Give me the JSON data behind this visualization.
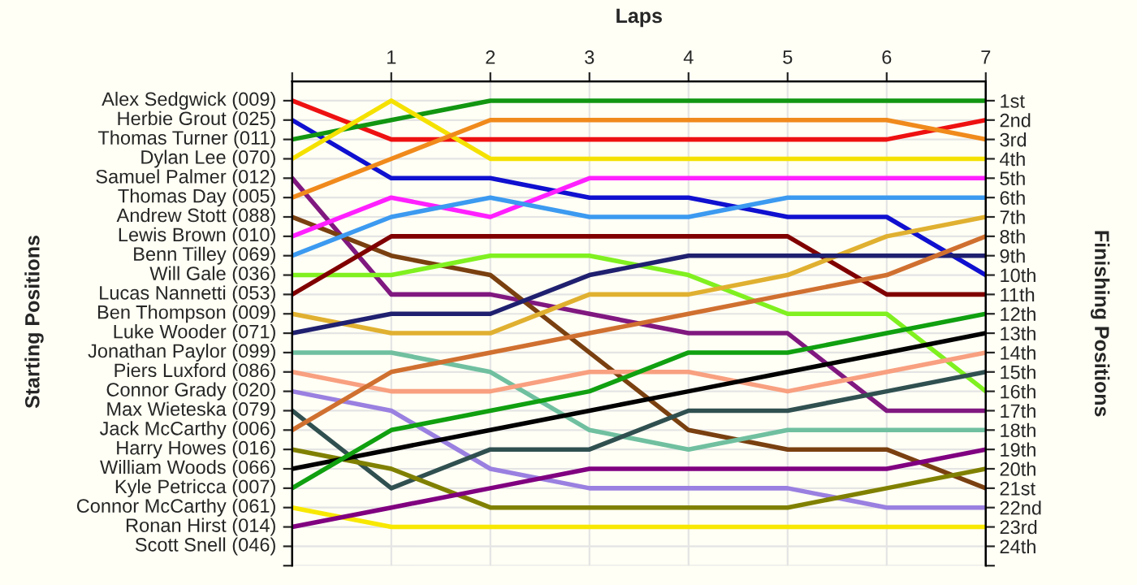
{
  "chart_data": {
    "type": "line",
    "xlabel": "Laps",
    "ylabel": "Finishing Positions",
    "x": [
      0,
      1,
      2,
      3,
      4,
      5,
      6,
      7
    ],
    "xlim": [
      0,
      7
    ],
    "xticks": [
      {
        "value": 0,
        "label": null
      },
      1,
      2,
      3,
      4,
      5,
      6,
      7
    ],
    "ylim": [
      25,
      0
    ],
    "yticks": [
      {
        "value": 1,
        "label": "1st"
      },
      {
        "value": 2,
        "label": "2nd"
      },
      {
        "value": 3,
        "label": "3rd"
      },
      {
        "value": 4,
        "label": "4th"
      },
      {
        "value": 5,
        "label": "5th"
      },
      {
        "value": 6,
        "label": "6th"
      },
      {
        "value": 7,
        "label": "7th"
      },
      {
        "value": 8,
        "label": "8th"
      },
      {
        "value": 9,
        "label": "9th"
      },
      {
        "value": 10,
        "label": "10th"
      },
      {
        "value": 11,
        "label": "11th"
      },
      {
        "value": 12,
        "label": "12th"
      },
      {
        "value": 13,
        "label": "13th"
      },
      {
        "value": 14,
        "label": "14th"
      },
      {
        "value": 15,
        "label": "15th"
      },
      {
        "value": 16,
        "label": "16th"
      },
      {
        "value": 17,
        "label": "17th"
      },
      {
        "value": 18,
        "label": "18th"
      },
      {
        "value": 19,
        "label": "19th"
      },
      {
        "value": 20,
        "label": "20th"
      },
      {
        "value": 21,
        "label": "21st"
      },
      {
        "value": 22,
        "label": "22nd"
      },
      {
        "value": 23,
        "label": "23rd"
      },
      {
        "value": 24,
        "label": "24th"
      },
      {
        "value": 25,
        "label": null
      }
    ],
    "annotations": [
      "Starting Positions",
      "Alex Sedgwick (009)",
      "Herbie Grout (025)",
      "Thomas Turner (011)",
      "Dylan Lee (070)",
      "Samuel Palmer (012)",
      "Thomas Day (005)",
      "Andrew Stott (088)",
      "Lewis Brown (010)",
      "Benn Tilley (069)",
      "Will Gale (036)",
      "Lucas Nannetti (053)",
      "Ben Thompson (009)",
      "Luke Wooder (071)",
      "Jonathan Paylor (099)",
      "Piers Luxford (086)",
      "Connor Grady (020)",
      "Max Wieteska (079)",
      "Jack McCarthy (006)",
      "Harry Howes (016)",
      "William Woods (066)",
      "Kyle Petricca (007)",
      "Connor McCarthy (061)",
      "Ronan Hirst (014)",
      "Scott Snell (046)"
    ],
    "grid": true,
    "legend": false,
    "marker": "none",
    "line_style": "solid",
    "series": [
      {
        "color": "#ee1111",
        "values": [
          1,
          3,
          3,
          3,
          3,
          3,
          3,
          2
        ]
      },
      {
        "color": "#1010d0",
        "values": [
          2,
          5,
          5,
          6,
          6,
          7,
          7,
          10
        ]
      },
      {
        "color": "#129612",
        "values": [
          3,
          2,
          1,
          1,
          1,
          1,
          1,
          1
        ]
      },
      {
        "color": "#f5e100",
        "values": [
          4,
          1,
          4,
          4,
          4,
          4,
          4,
          4
        ]
      },
      {
        "color": "#801880",
        "values": [
          5,
          11,
          11,
          12,
          13,
          13,
          17,
          17
        ]
      },
      {
        "color": "#f08a1c",
        "values": [
          6,
          4,
          2,
          2,
          2,
          2,
          2,
          3
        ]
      },
      {
        "color": "#7a4010",
        "values": [
          7,
          9,
          10,
          14,
          18,
          19,
          19,
          21
        ]
      },
      {
        "color": "#ff20ff",
        "values": [
          8,
          6,
          7,
          5,
          5,
          5,
          5,
          5
        ]
      },
      {
        "color": "#3c9af0",
        "values": [
          9,
          7,
          6,
          7,
          7,
          6,
          6,
          6
        ]
      },
      {
        "color": "#80f020",
        "values": [
          10,
          10,
          9,
          9,
          10,
          12,
          12,
          16
        ]
      },
      {
        "color": "#800000",
        "values": [
          11,
          8,
          8,
          8,
          8,
          8,
          11,
          11
        ]
      },
      {
        "color": "#e0b030",
        "values": [
          12,
          13,
          13,
          11,
          11,
          10,
          8,
          7
        ]
      },
      {
        "color": "#202070",
        "values": [
          13,
          12,
          12,
          10,
          9,
          9,
          9,
          9
        ]
      },
      {
        "color": "#70c0a0",
        "values": [
          14,
          14,
          15,
          18,
          19,
          18,
          18,
          18
        ]
      },
      {
        "color": "#f8a080",
        "values": [
          15,
          16,
          16,
          15,
          15,
          16,
          15,
          14
        ]
      },
      {
        "color": "#9a80e0",
        "values": [
          16,
          17,
          20,
          21,
          21,
          21,
          22,
          22
        ]
      },
      {
        "color": "#305050",
        "values": [
          17,
          21,
          19,
          19,
          17,
          17,
          16,
          15
        ]
      },
      {
        "color": "#d07030",
        "values": [
          18,
          15,
          14,
          13,
          12,
          11,
          10,
          8
        ]
      },
      {
        "color": "#808000",
        "values": [
          19,
          20,
          22,
          22,
          22,
          22,
          21,
          20
        ]
      },
      {
        "color": "#000000",
        "values": [
          20,
          19,
          18,
          17,
          16,
          15,
          14,
          13
        ]
      },
      {
        "color": "#10a010",
        "values": [
          21,
          18,
          17,
          16,
          14,
          14,
          13,
          12
        ]
      },
      {
        "color": "#f8e800",
        "values": [
          22,
          23,
          23,
          23,
          23,
          23,
          23,
          23
        ]
      },
      {
        "color": "#800080",
        "values": [
          23,
          22,
          21,
          20,
          20,
          20,
          20,
          19
        ]
      }
    ]
  }
}
